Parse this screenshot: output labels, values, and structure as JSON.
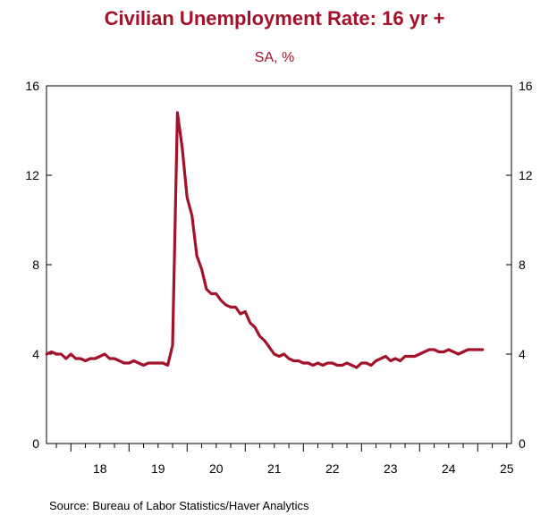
{
  "chart_data": {
    "type": "line",
    "title": "Civilian Unemployment Rate: 16 yr +",
    "subtitle": "SA, %",
    "source": "Source:  Bureau of Labor Statistics/Haver Analytics",
    "ylim": [
      0,
      16
    ],
    "yticks": [
      0,
      4,
      8,
      12,
      16
    ],
    "xlim": [
      2017.58,
      2025.58
    ],
    "xticks": [
      {
        "label": "18",
        "pos": 2018.5
      },
      {
        "label": "19",
        "pos": 2019.5
      },
      {
        "label": "20",
        "pos": 2020.5
      },
      {
        "label": "21",
        "pos": 2021.5
      },
      {
        "label": "22",
        "pos": 2022.5
      },
      {
        "label": "23",
        "pos": 2023.5
      },
      {
        "label": "24",
        "pos": 2024.5
      },
      {
        "label": "25",
        "pos": 2025.5
      }
    ],
    "line_color": "#a3122a",
    "series": [
      {
        "start": 2017.583,
        "step": 0.08333,
        "values": [
          4.0,
          4.1,
          4.0,
          4.0,
          3.8,
          4.0,
          3.8,
          3.8,
          3.7,
          3.8,
          3.8,
          3.9,
          4.0,
          3.8,
          3.8,
          3.7,
          3.6,
          3.6,
          3.7,
          3.6,
          3.5,
          3.6,
          3.6,
          3.6,
          3.6,
          3.5,
          4.4,
          14.8,
          13.2,
          11.0,
          10.2,
          8.4,
          7.8,
          6.9,
          6.7,
          6.7,
          6.4,
          6.2,
          6.1,
          6.1,
          5.8,
          5.9,
          5.4,
          5.2,
          4.8,
          4.6,
          4.3,
          4.0,
          3.9,
          4.0,
          3.8,
          3.7,
          3.7,
          3.6,
          3.6,
          3.5,
          3.6,
          3.5,
          3.6,
          3.6,
          3.5,
          3.5,
          3.6,
          3.5,
          3.4,
          3.6,
          3.6,
          3.5,
          3.7,
          3.8,
          3.9,
          3.7,
          3.8,
          3.7,
          3.9,
          3.9,
          3.9,
          4.0,
          4.1,
          4.2,
          4.2,
          4.1,
          4.1,
          4.2,
          4.1,
          4.0,
          4.1,
          4.2,
          4.2,
          4.2,
          4.2
        ]
      }
    ]
  }
}
